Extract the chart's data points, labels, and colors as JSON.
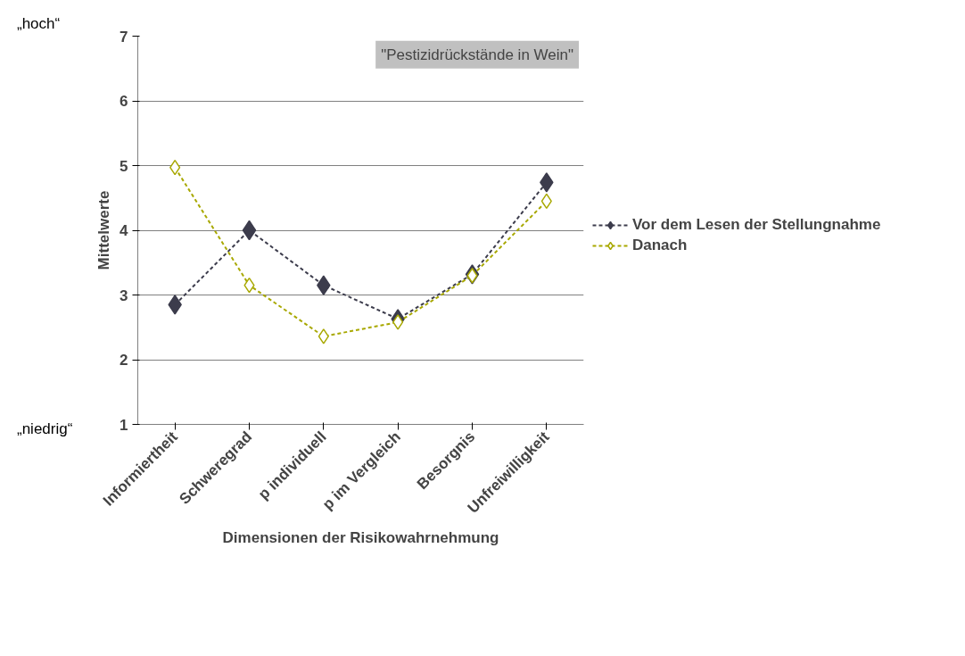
{
  "chart_data": {
    "type": "line",
    "xlabel": "Dimensionen der Risikowahrnehmung",
    "ylabel": "Mittelwerte",
    "categories": [
      "Informiertheit",
      "Schweregrad",
      "p individuell",
      "p im Vergleich",
      "Besorgnis",
      "Unfreiwilligkeit"
    ],
    "series": [
      {
        "name": "Vor dem Lesen der Stellungnahme",
        "color": "#3c3c4c",
        "values": [
          2.85,
          4.0,
          3.15,
          2.63,
          3.32,
          4.74
        ]
      },
      {
        "name": "Danach",
        "color": "#a8a800",
        "values": [
          4.97,
          3.15,
          2.36,
          2.58,
          3.3,
          4.45
        ]
      }
    ],
    "ylim": [
      1,
      7
    ],
    "yticks": [
      1,
      2,
      3,
      4,
      5,
      6,
      7
    ],
    "grid": "y",
    "legend": "right",
    "marker": "diamond",
    "line_style": "dashed",
    "annotations": [
      "„hoch“",
      "„niedrig“",
      "\"Pestizidrückstände in Wein\""
    ]
  }
}
